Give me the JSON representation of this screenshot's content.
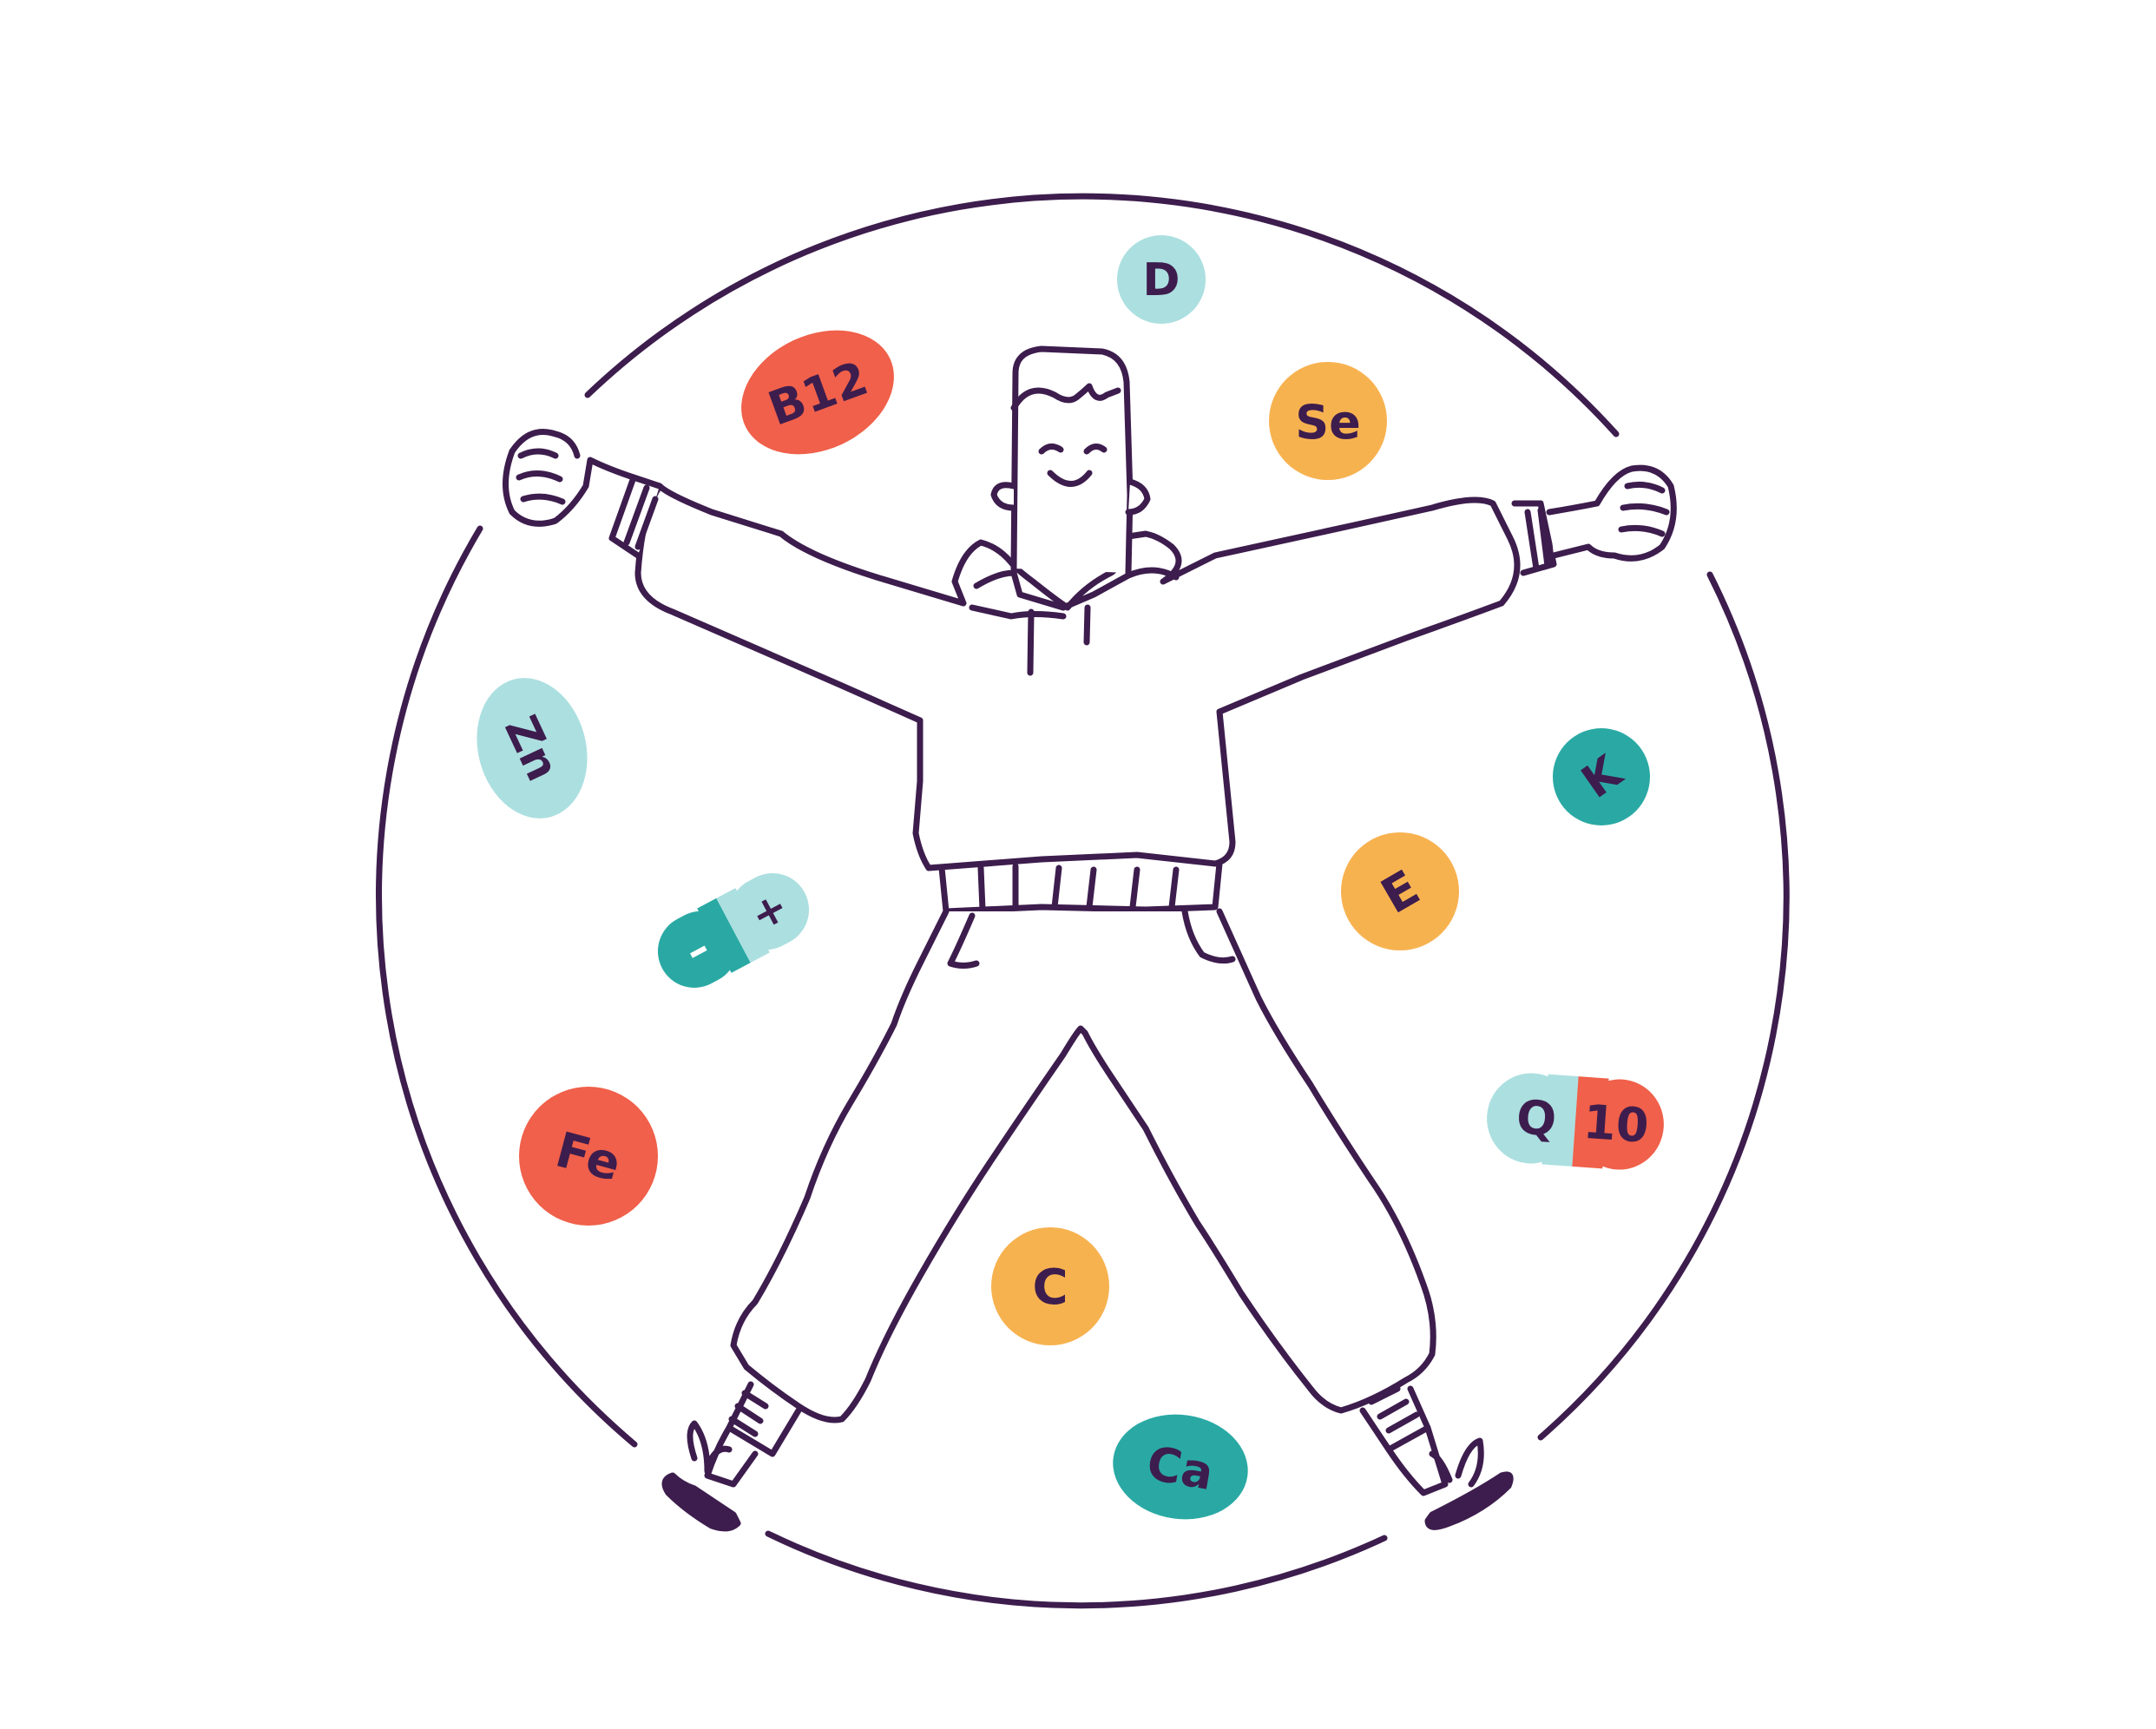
{
  "illustration": {
    "colors": {
      "outline": "#3d1d4d",
      "red": "#f0604a",
      "orange": "#f7b250",
      "light_teal": "#acdfe0",
      "teal": "#2aa9a4",
      "background": "#ffffff"
    },
    "badges": {
      "d": {
        "label": "D"
      },
      "b12": {
        "label": "B12"
      },
      "se": {
        "label": "Se"
      },
      "zn": {
        "label": "Zn"
      },
      "k": {
        "label": "K"
      },
      "e": {
        "label": "E"
      },
      "pill_minus": {
        "label": "–"
      },
      "pill_plus": {
        "label": "+"
      },
      "fe": {
        "label": "Fe"
      },
      "q": {
        "label": "Q"
      },
      "ten": {
        "label": "10"
      },
      "c": {
        "label": "C"
      },
      "ca": {
        "label": "Ca"
      }
    }
  }
}
